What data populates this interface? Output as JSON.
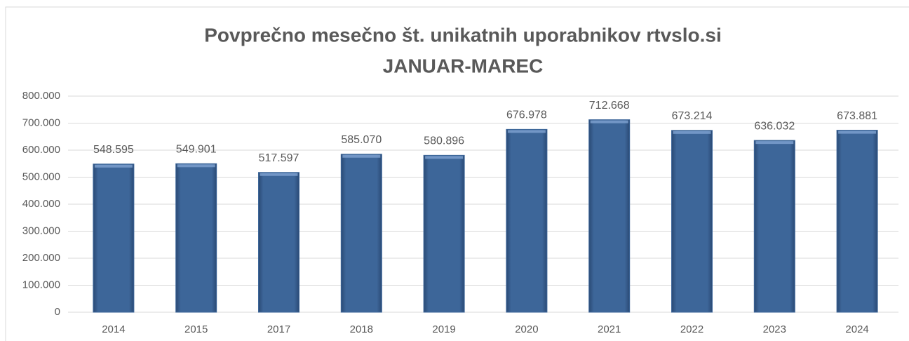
{
  "chart_data": {
    "type": "bar",
    "title": "Povprečno mesečno št. unikatnih uporabnikov rtvslo.si",
    "subtitle": "JANUAR-MAREC",
    "categories": [
      "2014",
      "2015",
      "2017",
      "2018",
      "2019",
      "2020",
      "2021",
      "2022",
      "2023",
      "2024"
    ],
    "values": [
      548595,
      549901,
      517597,
      585070,
      580896,
      676978,
      712668,
      673214,
      636032,
      673881
    ],
    "value_labels": [
      "548.595",
      "549.901",
      "517.597",
      "585.070",
      "580.896",
      "676.978",
      "712.668",
      "673.214",
      "636.032",
      "673.881"
    ],
    "color": "#3d6699",
    "ylim": [
      0,
      800000
    ],
    "yticks": [
      0,
      {
        "value": 100000,
        "label": "100.000"
      },
      {
        "value": 200000,
        "label": "200.000"
      },
      {
        "value": 300000,
        "label": "300.000"
      },
      {
        "value": 400000,
        "label": "400.000"
      },
      {
        "value": 500000,
        "label": "500.000"
      },
      {
        "value": 600000,
        "label": "600.000"
      },
      {
        "value": 700000,
        "label": "700.000"
      },
      {
        "value": 800000,
        "label": "800.000"
      }
    ],
    "grid": true
  }
}
